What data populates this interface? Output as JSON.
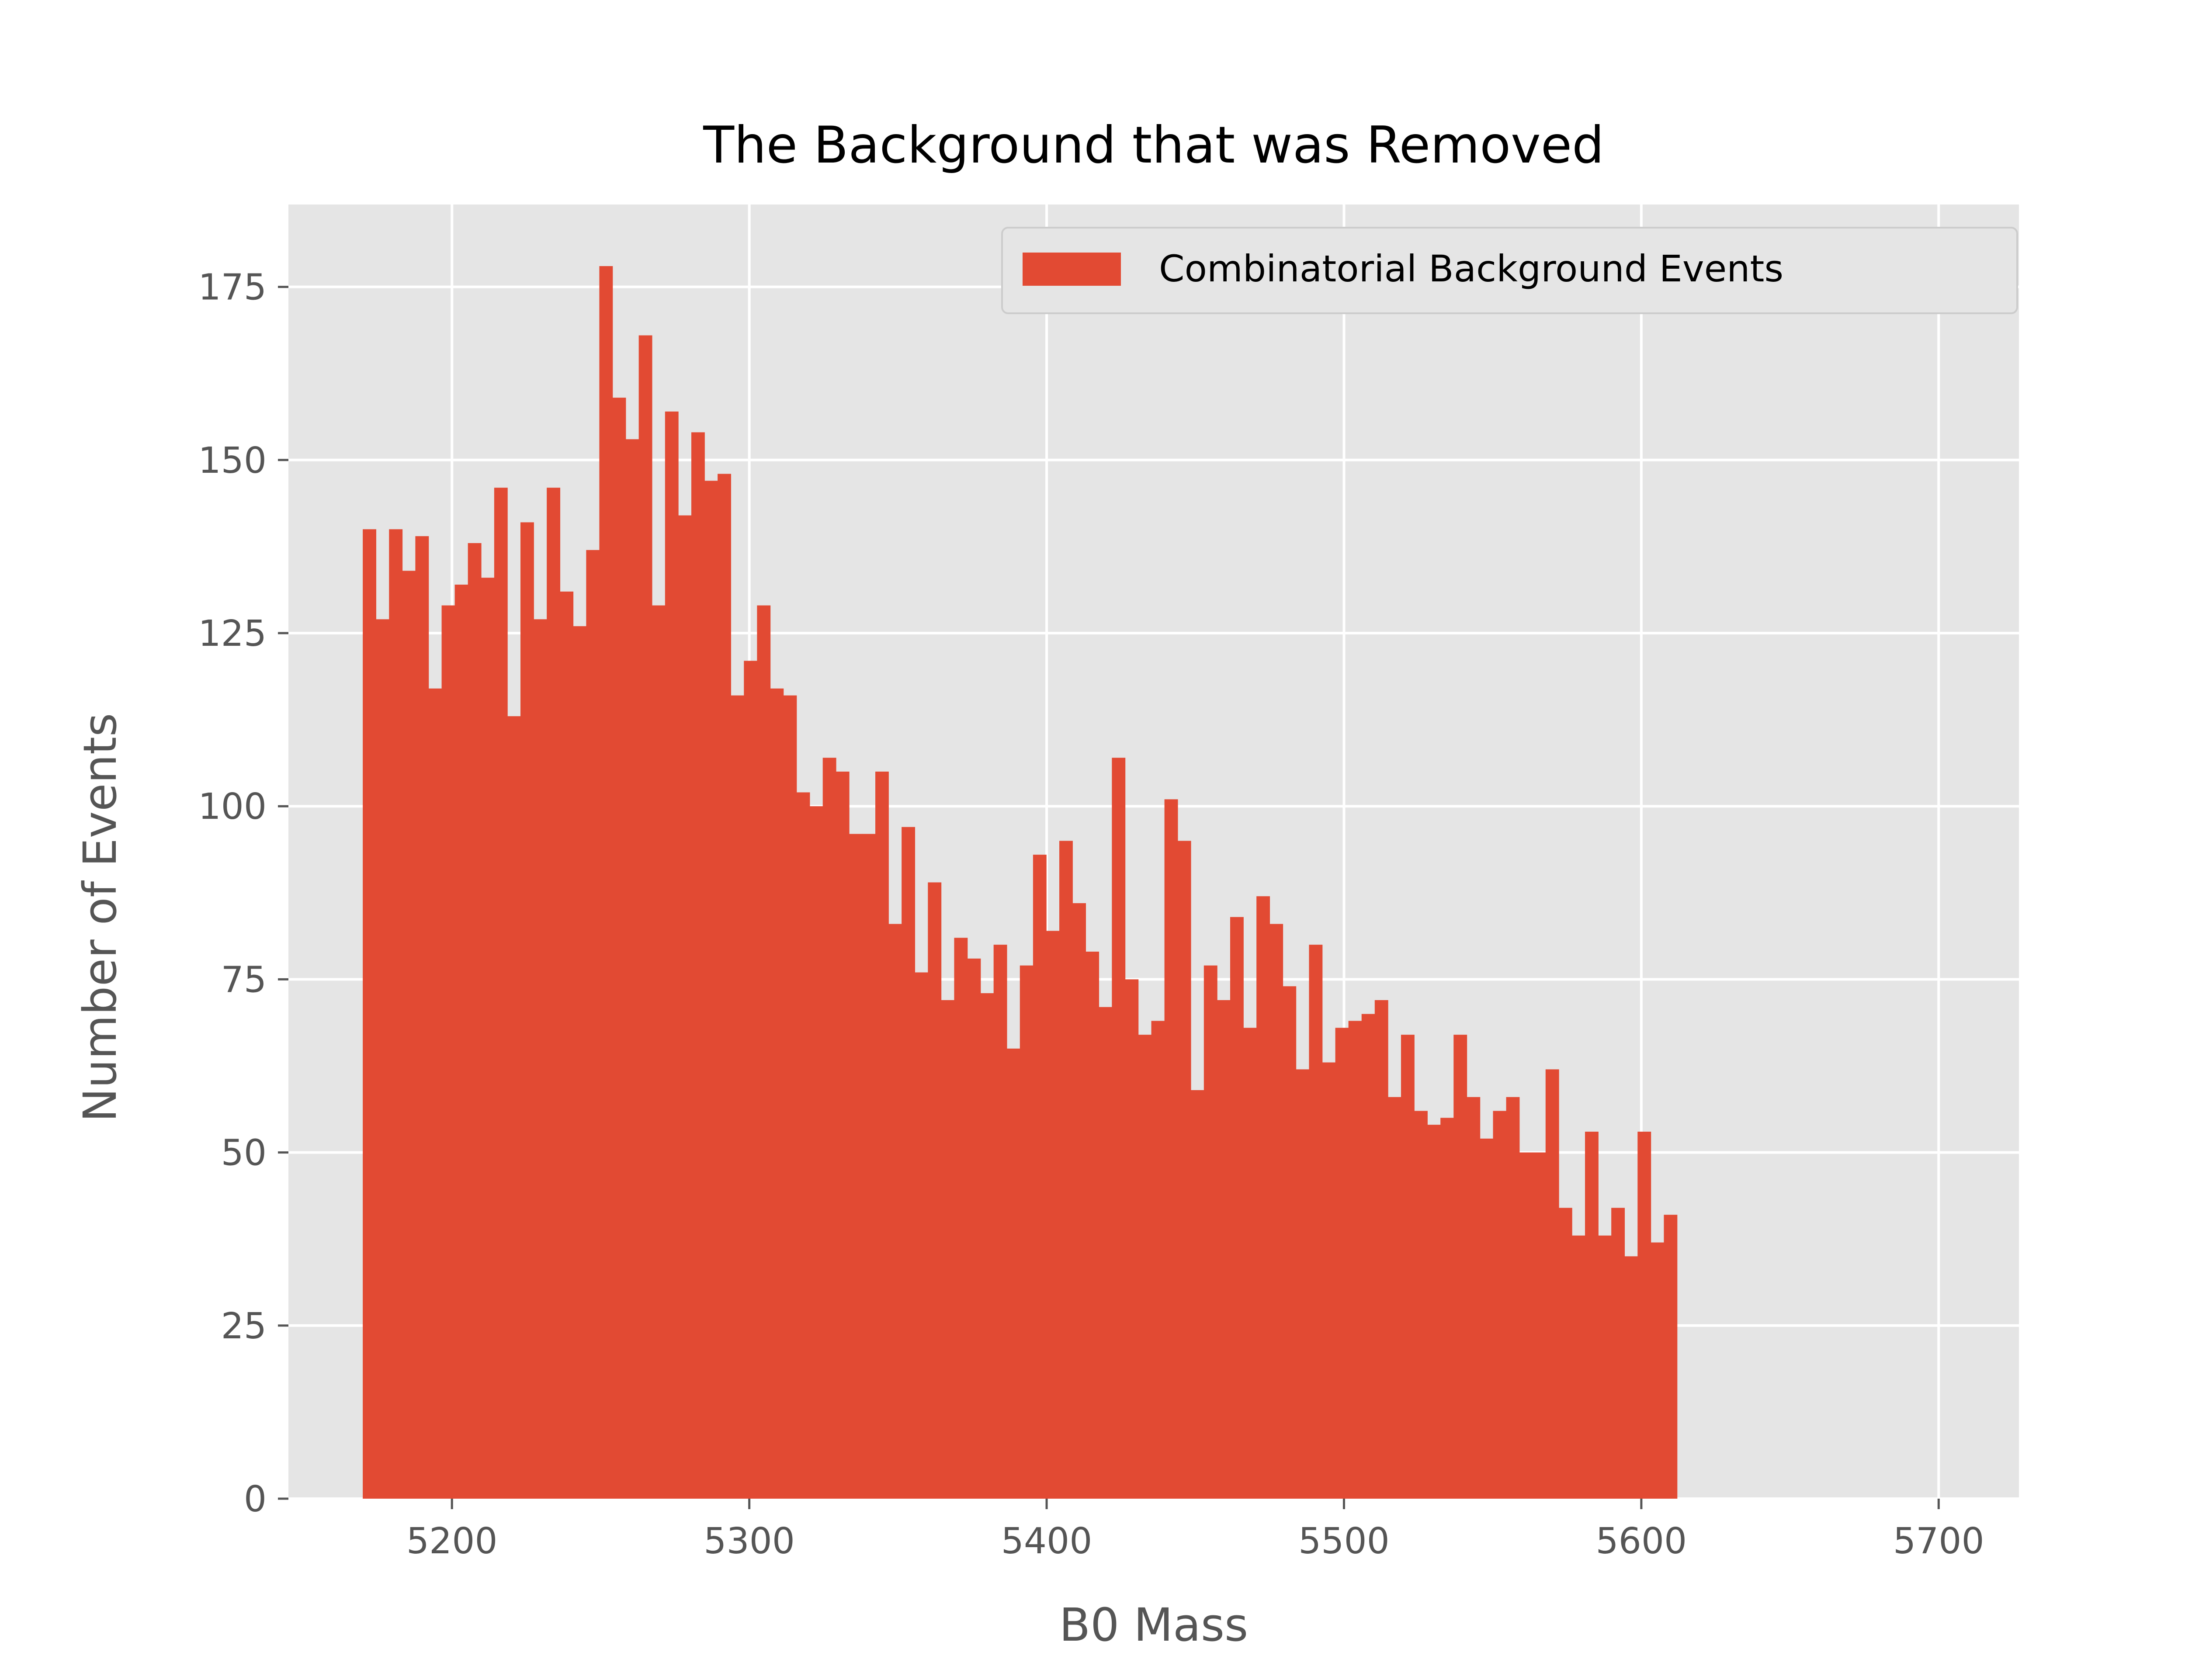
{
  "chart_data": {
    "type": "bar",
    "subtype": "histogram",
    "title": "The Background that was Removed",
    "xlabel": "B0 Mass",
    "ylabel": "Number of Events",
    "xlim": [
      5145,
      5727
    ],
    "ylim": [
      0,
      186.9
    ],
    "xticks": [
      5200,
      5300,
      5400,
      5500,
      5600,
      5700
    ],
    "yticks": [
      0,
      25,
      50,
      75,
      100,
      125,
      150,
      175
    ],
    "grid": true,
    "legend": {
      "placement": "top-right",
      "entries": [
        "Combinatorial Background Events"
      ]
    },
    "colors": {
      "bar": "#E24A33",
      "plot_bg": "#E5E5E5",
      "grid": "#FFFFFF",
      "text": "#555555"
    },
    "bin_start": 5170,
    "bin_width": 4.42,
    "series": [
      {
        "name": "Combinatorial Background Events",
        "values": [
          140,
          127,
          140,
          134,
          139,
          117,
          129,
          132,
          138,
          133,
          146,
          113,
          141,
          127,
          146,
          131,
          126,
          137,
          178,
          159,
          153,
          168,
          129,
          157,
          142,
          154,
          147,
          148,
          116,
          121,
          129,
          117,
          116,
          102,
          100,
          107,
          105,
          96,
          96,
          105,
          83,
          97,
          76,
          89,
          72,
          81,
          78,
          73,
          80,
          65,
          77,
          93,
          82,
          95,
          86,
          79,
          71,
          107,
          75,
          67,
          69,
          101,
          95,
          59,
          77,
          72,
          84,
          68,
          87,
          83,
          74,
          62,
          80,
          63,
          68,
          69,
          70,
          72,
          58,
          67,
          56,
          54,
          55,
          67,
          58,
          52,
          56,
          58,
          50,
          50,
          62,
          42,
          38,
          53,
          38,
          42,
          35,
          53,
          37,
          41
        ]
      }
    ]
  }
}
